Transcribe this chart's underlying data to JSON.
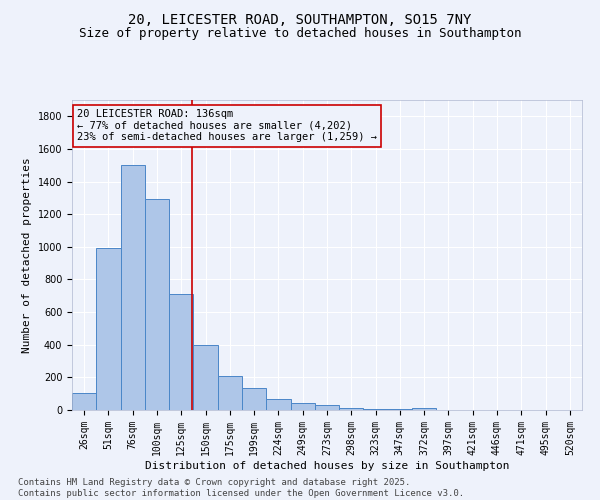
{
  "title_line1": "20, LEICESTER ROAD, SOUTHAMPTON, SO15 7NY",
  "title_line2": "Size of property relative to detached houses in Southampton",
  "xlabel": "Distribution of detached houses by size in Southampton",
  "ylabel": "Number of detached properties",
  "categories": [
    "26sqm",
    "51sqm",
    "76sqm",
    "100sqm",
    "125sqm",
    "150sqm",
    "175sqm",
    "199sqm",
    "224sqm",
    "249sqm",
    "273sqm",
    "298sqm",
    "323sqm",
    "347sqm",
    "372sqm",
    "397sqm",
    "421sqm",
    "446sqm",
    "471sqm",
    "495sqm",
    "520sqm"
  ],
  "values": [
    107,
    995,
    1503,
    1291,
    708,
    400,
    210,
    134,
    70,
    42,
    30,
    14,
    7,
    7,
    14,
    0,
    0,
    0,
    0,
    0,
    0
  ],
  "bar_color": "#aec6e8",
  "bar_edge_color": "#4a86c8",
  "vline_x": 4.44,
  "vline_color": "#cc0000",
  "annotation_text": "20 LEICESTER ROAD: 136sqm\n← 77% of detached houses are smaller (4,202)\n23% of semi-detached houses are larger (1,259) →",
  "annotation_box_color": "#cc0000",
  "ylim": [
    0,
    1900
  ],
  "yticks": [
    0,
    200,
    400,
    600,
    800,
    1000,
    1200,
    1400,
    1600,
    1800
  ],
  "background_color": "#eef2fb",
  "grid_color": "#ffffff",
  "footer_line1": "Contains HM Land Registry data © Crown copyright and database right 2025.",
  "footer_line2": "Contains public sector information licensed under the Open Government Licence v3.0.",
  "title_fontsize": 10,
  "subtitle_fontsize": 9,
  "axis_label_fontsize": 8,
  "tick_fontsize": 7,
  "annotation_fontsize": 7.5,
  "footer_fontsize": 6.5
}
